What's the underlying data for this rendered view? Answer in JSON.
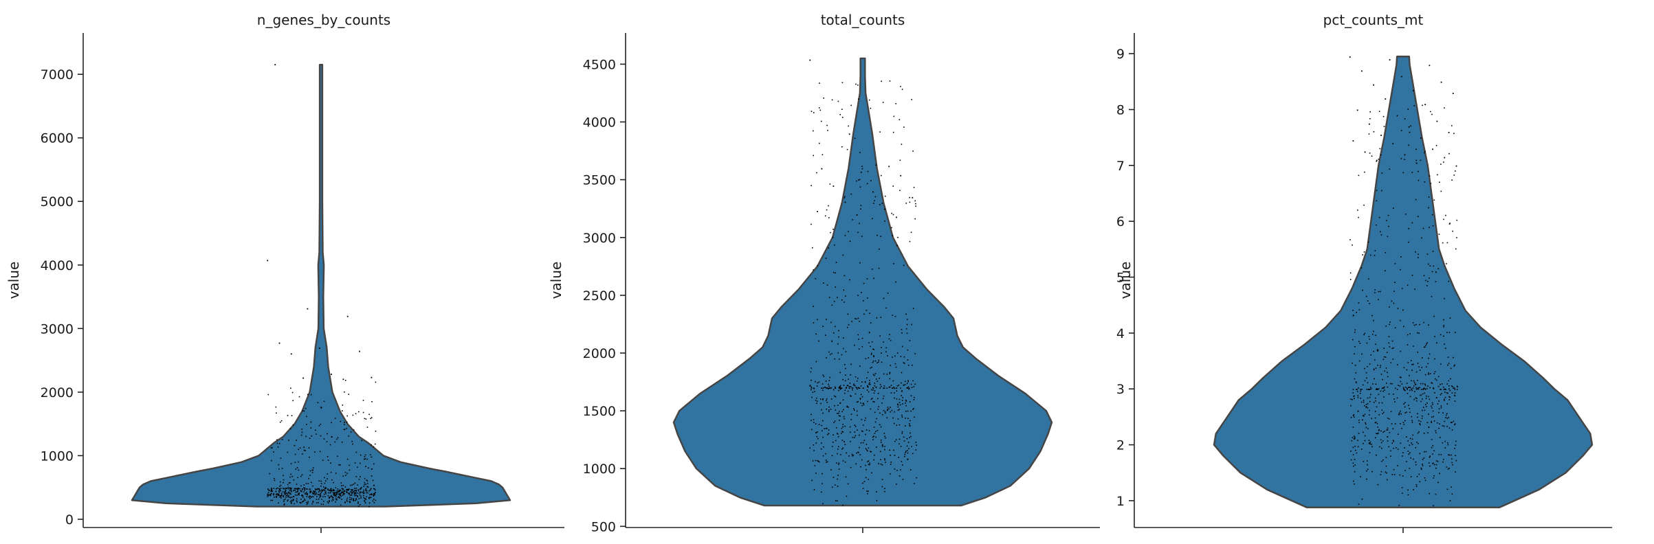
{
  "chart_data": [
    {
      "type": "violin",
      "title": "n_genes_by_counts",
      "ylabel": "value",
      "ylim": [
        -130,
        7650
      ],
      "yticks": [
        0,
        1000,
        2000,
        3000,
        4000,
        5000,
        6000,
        7000
      ],
      "min": 200,
      "max": 7150,
      "density_profile": [
        [
          200,
          0.34
        ],
        [
          250,
          0.82
        ],
        [
          300,
          1.0
        ],
        [
          350,
          0.99
        ],
        [
          400,
          0.98
        ],
        [
          450,
          0.97
        ],
        [
          500,
          0.96
        ],
        [
          550,
          0.94
        ],
        [
          600,
          0.9
        ],
        [
          650,
          0.82
        ],
        [
          700,
          0.74
        ],
        [
          750,
          0.66
        ],
        [
          800,
          0.57
        ],
        [
          900,
          0.42
        ],
        [
          1000,
          0.33
        ],
        [
          1100,
          0.29
        ],
        [
          1200,
          0.25
        ],
        [
          1300,
          0.2
        ],
        [
          1500,
          0.14
        ],
        [
          1700,
          0.1
        ],
        [
          2000,
          0.06
        ],
        [
          2400,
          0.038
        ],
        [
          2700,
          0.03
        ],
        [
          3000,
          0.014
        ],
        [
          3500,
          0.012
        ],
        [
          4000,
          0.015
        ],
        [
          4200,
          0.009
        ],
        [
          5000,
          0.007
        ],
        [
          6000,
          0.007
        ],
        [
          7150,
          0.007
        ]
      ],
      "points": {
        "n": 700,
        "median": 500,
        "spread": 0.66,
        "outliers": [
          4080,
          3320,
          3200,
          2780,
          2700,
          2650,
          2610,
          2290,
          2240,
          2230,
          2210,
          7160
        ]
      }
    },
    {
      "type": "violin",
      "title": "total_counts",
      "ylabel": "value",
      "ylim": [
        490,
        4770
      ],
      "yticks": [
        500,
        1000,
        1500,
        2000,
        2500,
        3000,
        3500,
        4000,
        4500
      ],
      "min": 680,
      "max": 4550,
      "density_profile": [
        [
          680,
          0.52
        ],
        [
          750,
          0.65
        ],
        [
          850,
          0.78
        ],
        [
          1000,
          0.88
        ],
        [
          1150,
          0.94
        ],
        [
          1300,
          0.98
        ],
        [
          1400,
          1.0
        ],
        [
          1500,
          0.97
        ],
        [
          1650,
          0.86
        ],
        [
          1800,
          0.72
        ],
        [
          1950,
          0.6
        ],
        [
          2050,
          0.53
        ],
        [
          2150,
          0.5
        ],
        [
          2300,
          0.48
        ],
        [
          2400,
          0.43
        ],
        [
          2550,
          0.34
        ],
        [
          2750,
          0.24
        ],
        [
          3000,
          0.16
        ],
        [
          3300,
          0.11
        ],
        [
          3600,
          0.075
        ],
        [
          3900,
          0.05
        ],
        [
          4100,
          0.03
        ],
        [
          4250,
          0.015
        ],
        [
          4400,
          0.012
        ],
        [
          4550,
          0.012
        ]
      ],
      "points": {
        "n": 800,
        "median": 1700,
        "spread": 0.94,
        "outliers": [
          4540,
          3900,
          3620,
          3600,
          3570,
          3540,
          3450,
          3400,
          3350,
          3310,
          3250,
          3230,
          3200,
          3180
        ]
      }
    },
    {
      "type": "violin",
      "title": "pct_counts_mt",
      "ylabel": "value",
      "ylim": [
        0.52,
        9.37
      ],
      "yticks": [
        1,
        2,
        3,
        4,
        5,
        6,
        7,
        8,
        9
      ],
      "min": 0.88,
      "max": 8.95,
      "density_profile": [
        [
          0.88,
          0.51
        ],
        [
          1.2,
          0.72
        ],
        [
          1.5,
          0.86
        ],
        [
          1.8,
          0.95
        ],
        [
          2.0,
          1.0
        ],
        [
          2.2,
          0.99
        ],
        [
          2.5,
          0.93
        ],
        [
          2.8,
          0.87
        ],
        [
          3.0,
          0.8
        ],
        [
          3.2,
          0.74
        ],
        [
          3.5,
          0.64
        ],
        [
          3.8,
          0.52
        ],
        [
          4.1,
          0.41
        ],
        [
          4.4,
          0.33
        ],
        [
          4.8,
          0.27
        ],
        [
          5.2,
          0.22
        ],
        [
          5.5,
          0.19
        ],
        [
          6.0,
          0.17
        ],
        [
          6.5,
          0.15
        ],
        [
          7.0,
          0.13
        ],
        [
          7.5,
          0.1
        ],
        [
          8.0,
          0.075
        ],
        [
          8.5,
          0.05
        ],
        [
          8.8,
          0.035
        ],
        [
          8.95,
          0.032
        ]
      ],
      "points": {
        "n": 800,
        "median": 3.0,
        "spread": 0.86,
        "outliers": [
          8.95,
          8.9,
          8.8,
          8.7,
          8.6,
          8.5,
          8.45,
          8.35,
          8.3,
          8.2,
          8.1,
          8.0,
          7.9,
          7.8,
          7.75,
          7.7,
          7.6,
          7.55,
          7.5,
          7.45,
          7.4,
          7.3,
          7.25,
          7.2,
          7.15,
          7.1,
          7.05,
          7.0
        ]
      }
    }
  ]
}
